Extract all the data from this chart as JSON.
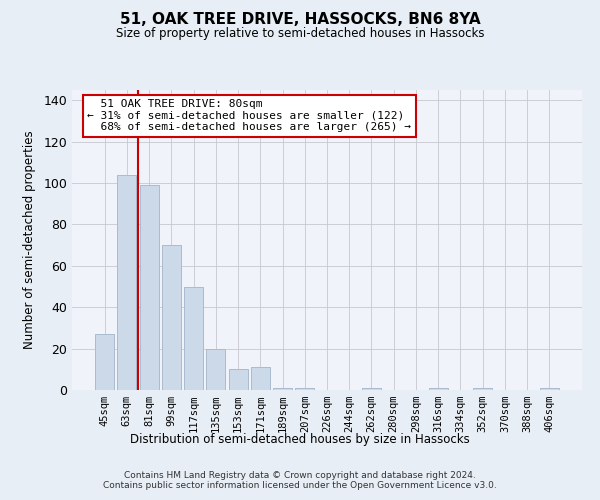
{
  "title": "51, OAK TREE DRIVE, HASSOCKS, BN6 8YA",
  "subtitle": "Size of property relative to semi-detached houses in Hassocks",
  "xlabel": "Distribution of semi-detached houses by size in Hassocks",
  "ylabel": "Number of semi-detached properties",
  "bar_labels": [
    "45sqm",
    "63sqm",
    "81sqm",
    "99sqm",
    "117sqm",
    "135sqm",
    "153sqm",
    "171sqm",
    "189sqm",
    "207sqm",
    "226sqm",
    "244sqm",
    "262sqm",
    "280sqm",
    "298sqm",
    "316sqm",
    "334sqm",
    "352sqm",
    "370sqm",
    "388sqm",
    "406sqm"
  ],
  "bar_values": [
    27,
    104,
    99,
    70,
    50,
    20,
    10,
    11,
    1,
    1,
    0,
    0,
    1,
    0,
    0,
    1,
    0,
    1,
    0,
    0,
    1
  ],
  "bar_color": "#ccd9e8",
  "bar_edge_color": "#aabbd0",
  "vline_color": "#cc0000",
  "vline_x": 1.5,
  "annotation_text": "  51 OAK TREE DRIVE: 80sqm\n← 31% of semi-detached houses are smaller (122)\n  68% of semi-detached houses are larger (265) →",
  "annotation_box_color": "#ffffff",
  "annotation_box_edge": "#cc0000",
  "ylim": [
    0,
    145
  ],
  "yticks": [
    0,
    20,
    40,
    60,
    80,
    100,
    120,
    140
  ],
  "footnote": "Contains HM Land Registry data © Crown copyright and database right 2024.\nContains public sector information licensed under the Open Government Licence v3.0.",
  "bg_color": "#e8eef5",
  "plot_bg_color": "#f0f4fa"
}
